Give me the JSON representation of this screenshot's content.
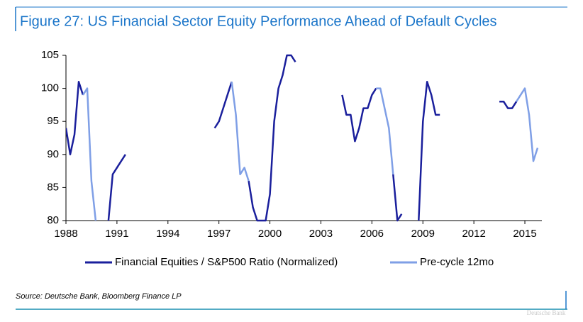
{
  "chart_data": {
    "type": "line",
    "title": "Figure 27: US Financial Sector Equity Performance Ahead of Default Cycles",
    "source": "Source: Deutsche Bank, Bloomberg Finance LP",
    "watermark": "Deutsche Bank",
    "xlim": [
      1988,
      2016
    ],
    "xticks": [
      1988,
      1991,
      1994,
      1997,
      2000,
      2003,
      2006,
      2009,
      2012,
      2015
    ],
    "ylim": [
      80,
      105
    ],
    "yticks": [
      80,
      85,
      90,
      95,
      100,
      105
    ],
    "legend": "bottom",
    "x": [
      1988,
      1988.25,
      1988.5,
      1988.75,
      1989,
      1989.25,
      1989.5,
      1989.75,
      1990,
      1990.25,
      1990.5,
      1990.75,
      1991,
      1991.25,
      1991.5,
      1991.75,
      1992,
      1992.25,
      1992.5,
      1992.75,
      1993,
      1993.25,
      1993.5,
      1993.75,
      1994,
      1994.25,
      1994.5,
      1994.75,
      1995,
      1995.25,
      1995.5,
      1995.75,
      1996,
      1996.25,
      1996.5,
      1996.75,
      1997,
      1997.25,
      1997.5,
      1997.75,
      1998,
      1998.25,
      1998.5,
      1998.75,
      1999,
      1999.25,
      1999.5,
      1999.75,
      2000,
      2000.25,
      2000.5,
      2000.75,
      2001,
      2001.25,
      2001.5,
      2001.75,
      2002,
      2002.25,
      2002.5,
      2002.75,
      2003,
      2003.25,
      2003.5,
      2003.75,
      2004,
      2004.25,
      2004.5,
      2004.75,
      2005,
      2005.25,
      2005.5,
      2005.75,
      2006,
      2006.25,
      2006.5,
      2006.75,
      2007,
      2007.25,
      2007.5,
      2007.75,
      2008,
      2008.25,
      2008.5,
      2008.75,
      2009,
      2009.25,
      2009.5,
      2009.75,
      2010,
      2010.25,
      2010.5,
      2010.75,
      2011,
      2011.25,
      2011.5,
      2011.75,
      2012,
      2012.25,
      2012.5,
      2012.75,
      2013,
      2013.25,
      2013.5,
      2013.75,
      2014,
      2014.25,
      2014.5,
      2014.75,
      2015,
      2015.25,
      2015.5,
      2015.75
    ],
    "series": [
      {
        "name": "Financial Equities / S&P500 Ratio (Normalized)",
        "color": "#1a1f9c",
        "values": [
          94,
          90,
          93,
          101,
          99,
          null,
          null,
          null,
          null,
          null,
          80,
          87,
          88,
          89,
          90,
          null,
          null,
          null,
          null,
          null,
          null,
          null,
          null,
          null,
          null,
          null,
          null,
          null,
          null,
          null,
          null,
          null,
          null,
          null,
          null,
          94,
          95,
          97,
          99,
          101,
          null,
          null,
          null,
          86,
          82,
          80,
          80,
          80,
          84,
          95,
          100,
          102,
          105,
          105,
          104,
          null,
          null,
          null,
          null,
          null,
          null,
          null,
          null,
          null,
          null,
          99,
          96,
          96,
          92,
          94,
          97,
          97,
          99,
          100,
          null,
          null,
          null,
          87,
          80,
          81,
          null,
          null,
          null,
          80,
          95,
          101,
          99,
          96,
          96,
          null,
          null,
          null,
          null,
          null,
          null,
          null,
          null,
          null,
          null,
          null,
          null,
          null,
          98,
          98,
          97,
          97,
          98,
          null,
          null,
          null,
          null,
          null
        ]
      },
      {
        "name": "Pre-cycle 12mo",
        "color": "#7f9fe6",
        "values": [
          null,
          null,
          null,
          null,
          99,
          100,
          86,
          80,
          null,
          null,
          null,
          null,
          null,
          null,
          null,
          null,
          null,
          null,
          null,
          null,
          null,
          null,
          null,
          null,
          null,
          null,
          null,
          null,
          null,
          null,
          null,
          null,
          null,
          null,
          null,
          null,
          null,
          null,
          null,
          101,
          96,
          87,
          88,
          86,
          null,
          null,
          null,
          null,
          null,
          null,
          null,
          null,
          null,
          null,
          null,
          null,
          null,
          null,
          null,
          null,
          null,
          null,
          null,
          null,
          null,
          null,
          null,
          null,
          null,
          null,
          null,
          null,
          null,
          100,
          100,
          97,
          94,
          87,
          null,
          null,
          null,
          null,
          null,
          null,
          null,
          null,
          null,
          null,
          null,
          null,
          null,
          null,
          null,
          null,
          null,
          null,
          null,
          null,
          null,
          null,
          null,
          null,
          null,
          null,
          null,
          null,
          98,
          99,
          100,
          96,
          89,
          91
        ]
      }
    ]
  }
}
